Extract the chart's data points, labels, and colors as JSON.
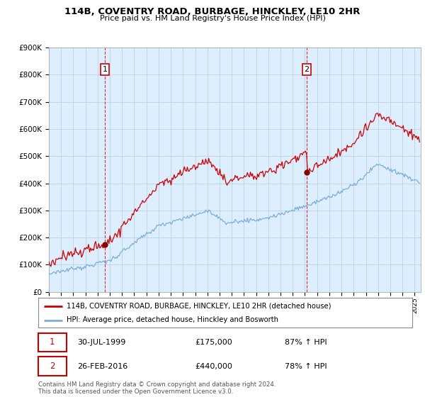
{
  "title": "114B, COVENTRY ROAD, BURBAGE, HINCKLEY, LE10 2HR",
  "subtitle": "Price paid vs. HM Land Registry's House Price Index (HPI)",
  "ylim": [
    0,
    900000
  ],
  "yticks": [
    0,
    100000,
    200000,
    300000,
    400000,
    500000,
    600000,
    700000,
    800000,
    900000
  ],
  "xlim_start": 1995.0,
  "xlim_end": 2025.5,
  "sale1_date": 1999.58,
  "sale1_price": 175000,
  "sale2_date": 2016.15,
  "sale2_price": 440000,
  "sale1_date_str": "30-JUL-1999",
  "sale1_price_str": "£175,000",
  "sale1_hpi_str": "87% ↑ HPI",
  "sale2_date_str": "26-FEB-2016",
  "sale2_price_str": "£440,000",
  "sale2_hpi_str": "78% ↑ HPI",
  "line_color_red": "#cc0000",
  "line_color_blue": "#7aaddb",
  "dot_color_red": "#880000",
  "box_border_red": "#cc0000",
  "plot_bg_color": "#ddeeff",
  "legend_label_red": "114B, COVENTRY ROAD, BURBAGE, HINCKLEY, LE10 2HR (detached house)",
  "legend_label_blue": "HPI: Average price, detached house, Hinckley and Bosworth",
  "footer": "Contains HM Land Registry data © Crown copyright and database right 2024.\nThis data is licensed under the Open Government Licence v3.0.",
  "background_color": "#ffffff",
  "grid_color": "#c0d0e0"
}
